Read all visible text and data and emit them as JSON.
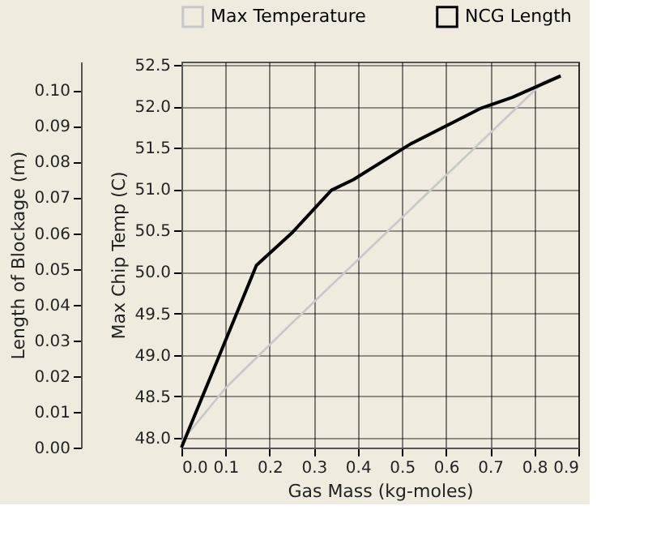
{
  "chart_data": {
    "type": "line",
    "xlabel": "Gas Mass (kg-moles)",
    "ylabel": "Max Chip Temp (C)",
    "y2label": "Length of Blockage (m)",
    "xlim": [
      0.0,
      0.9
    ],
    "xticks": [
      {
        "value": 0,
        "label": "0.0"
      },
      0.1,
      0.2,
      0.3,
      0.4,
      0.5,
      0.6,
      0.7,
      0.8,
      0.9
    ],
    "ylim": [
      47.88,
      52.54
    ],
    "yticks": [
      {
        "value": 48,
        "label": "48.0"
      },
      {
        "value": 48.5,
        "label": "48.5"
      },
      {
        "value": 49,
        "label": "49.0"
      },
      {
        "value": 49.5,
        "label": "49.5"
      },
      {
        "value": 50,
        "label": "50.0"
      },
      {
        "value": 50.5,
        "label": "50.5"
      },
      {
        "value": 51,
        "label": "51.0"
      },
      {
        "value": 51.5,
        "label": "51.5"
      },
      {
        "value": 52,
        "label": "52.0"
      },
      {
        "value": 52.5,
        "label": "52.5"
      }
    ],
    "y2lim": [
      0,
      0.108
    ],
    "y2ticks": [
      {
        "value": 0,
        "label": "0.00"
      },
      {
        "value": 0.01,
        "label": "0.01"
      },
      {
        "value": 0.02,
        "label": "0.02"
      },
      {
        "value": 0.03,
        "label": "0.03"
      },
      {
        "value": 0.04,
        "label": "0.04"
      },
      {
        "value": 0.05,
        "label": "0.05"
      },
      {
        "value": 0.06,
        "label": "0.06"
      },
      {
        "value": 0.07,
        "label": "0.07"
      },
      {
        "value": 0.08,
        "label": "0.08"
      },
      {
        "value": 0.09,
        "label": "0.09"
      },
      {
        "value": 0.1,
        "label": "0.10"
      }
    ],
    "grid": true,
    "legend": "top",
    "marker": "none",
    "line_style": "solid",
    "series": [
      {
        "name": "Max Temperature",
        "color": "#c8c8c8",
        "axis": "y",
        "x": [
          0.0,
          0.1,
          0.25,
          0.82,
          0.86
        ],
        "values": [
          47.95,
          48.6,
          49.38,
          52.29,
          52.38
        ]
      },
      {
        "name": "NCG Length",
        "color": "#000000",
        "axis": "y2",
        "x": [
          0.0,
          0.17,
          0.25,
          0.34,
          0.39,
          0.52,
          0.68,
          0.75,
          0.86
        ],
        "values": [
          0.0,
          0.051,
          0.06,
          0.072,
          0.075,
          0.085,
          0.095,
          0.098,
          0.104
        ]
      }
    ]
  }
}
